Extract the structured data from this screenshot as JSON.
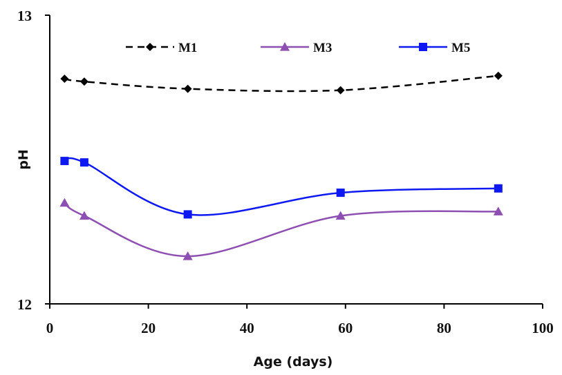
{
  "chart_data": {
    "type": "line",
    "title": "",
    "xlabel": "Age (days)",
    "ylabel": "pH",
    "xlim": [
      0,
      100
    ],
    "ylim": [
      12,
      13
    ],
    "x_ticks": [
      "0",
      "20",
      "40",
      "60",
      "80",
      "100"
    ],
    "y_ticks": [
      "12",
      "13"
    ],
    "grid": false,
    "legend_position": "top",
    "smooth": true,
    "series": [
      {
        "name": "M1",
        "color": "#000000",
        "dash": "dashed",
        "marker": "diamond",
        "points": [
          [
            3,
            12.78
          ],
          [
            7,
            12.77
          ],
          [
            28,
            12.745
          ],
          [
            59,
            12.74
          ],
          [
            91,
            12.79
          ]
        ]
      },
      {
        "name": "M3",
        "color": "#8e4fb2",
        "dash": "solid",
        "marker": "triangle",
        "points": [
          [
            3,
            12.35
          ],
          [
            7,
            12.305
          ],
          [
            28,
            12.165
          ],
          [
            59,
            12.305
          ],
          [
            91,
            12.32
          ]
        ]
      },
      {
        "name": "M5",
        "color": "#0d19f0",
        "dash": "solid",
        "marker": "square",
        "points": [
          [
            3,
            12.495
          ],
          [
            7,
            12.49
          ],
          [
            28,
            12.31
          ],
          [
            59,
            12.385
          ],
          [
            91,
            12.4
          ]
        ]
      }
    ]
  }
}
